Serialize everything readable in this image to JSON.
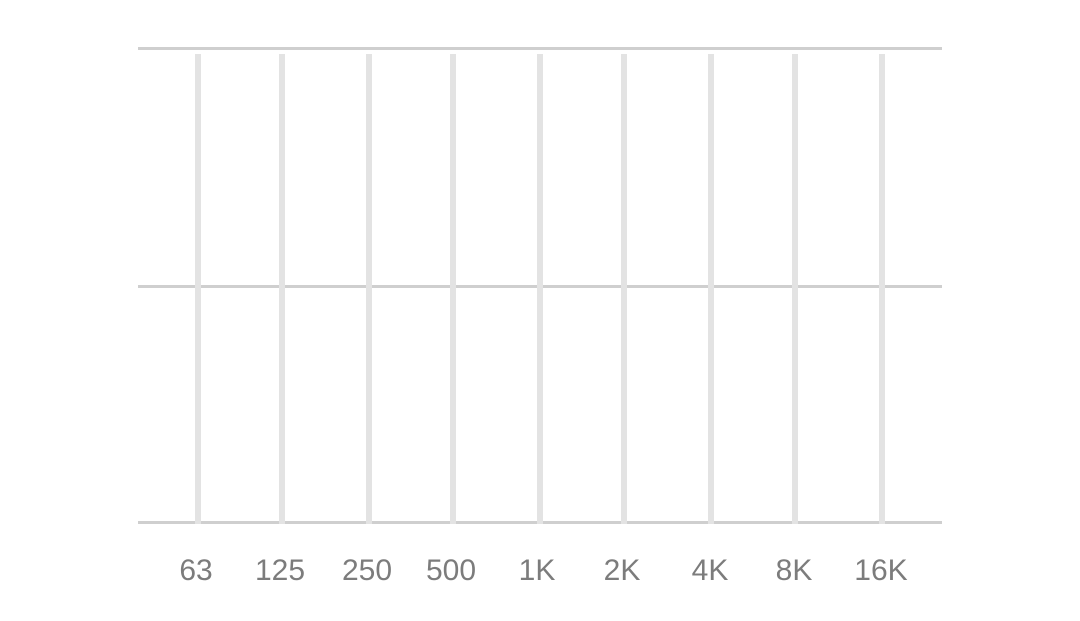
{
  "equalizer": {
    "bands": [
      {
        "label": "63"
      },
      {
        "label": "125"
      },
      {
        "label": "250"
      },
      {
        "label": "500"
      },
      {
        "label": "1K"
      },
      {
        "label": "2K"
      },
      {
        "label": "4K"
      },
      {
        "label": "8K"
      },
      {
        "label": "16K"
      }
    ],
    "colors": {
      "guide_line": "#cfcfcf",
      "slider_track": "#e3e3e3",
      "label_text": "#7c7c7c"
    }
  }
}
